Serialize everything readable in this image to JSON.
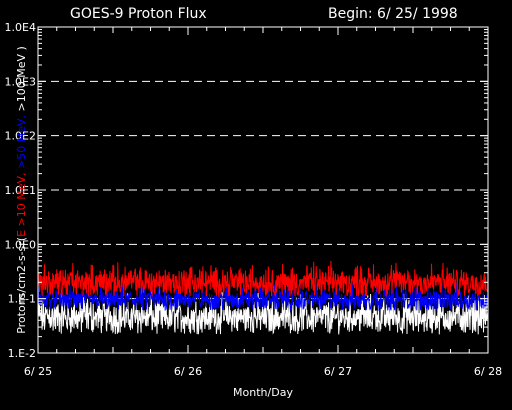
{
  "chart_data": {
    "type": "line",
    "title": "GOES-9 Proton Flux",
    "begin_label": "Begin: 6/ 25/ 1998",
    "xlabel": "Month/Day",
    "ylabel_prefix": "Protons/cm2-s-sr(",
    "ylabel_parts": [
      {
        "text": "E >10 MeV,",
        "color": "#ff0000"
      },
      {
        "text": " >50 MeV,",
        "color": "#0000ff"
      },
      {
        "text": " >100 MeV )",
        "color": "#ffffff"
      }
    ],
    "y_scale": "log",
    "ylim": [
      0.01,
      10000
    ],
    "y_ticks": [
      {
        "value": 0.01,
        "label": "1.E-2"
      },
      {
        "value": 0.1,
        "label": "1.E-1"
      },
      {
        "value": 1,
        "label": "1.0E0"
      },
      {
        "value": 10,
        "label": "1.0E1"
      },
      {
        "value": 100,
        "label": "1.0E2"
      },
      {
        "value": 1000,
        "label": "1.0E3"
      },
      {
        "value": 10000,
        "label": "1.0E4"
      }
    ],
    "xlim": [
      0,
      3
    ],
    "x_ticks": [
      {
        "value": 0,
        "label": "6/ 25"
      },
      {
        "value": 1,
        "label": "6/ 26"
      },
      {
        "value": 2,
        "label": "6/ 27"
      },
      {
        "value": 3,
        "label": "6/ 28"
      }
    ],
    "grid": "dashed horizontal at decades",
    "series": [
      {
        "name": "E >10 MeV",
        "color": "#ff0000",
        "base": 0.17,
        "spread": 0.45
      },
      {
        "name": ">50 MeV",
        "color": "#0000ff",
        "base": 0.085,
        "spread": 0.35
      },
      {
        "name": ">100 MeV",
        "color": "#ffffff",
        "base": 0.038,
        "spread": 0.55
      }
    ]
  }
}
